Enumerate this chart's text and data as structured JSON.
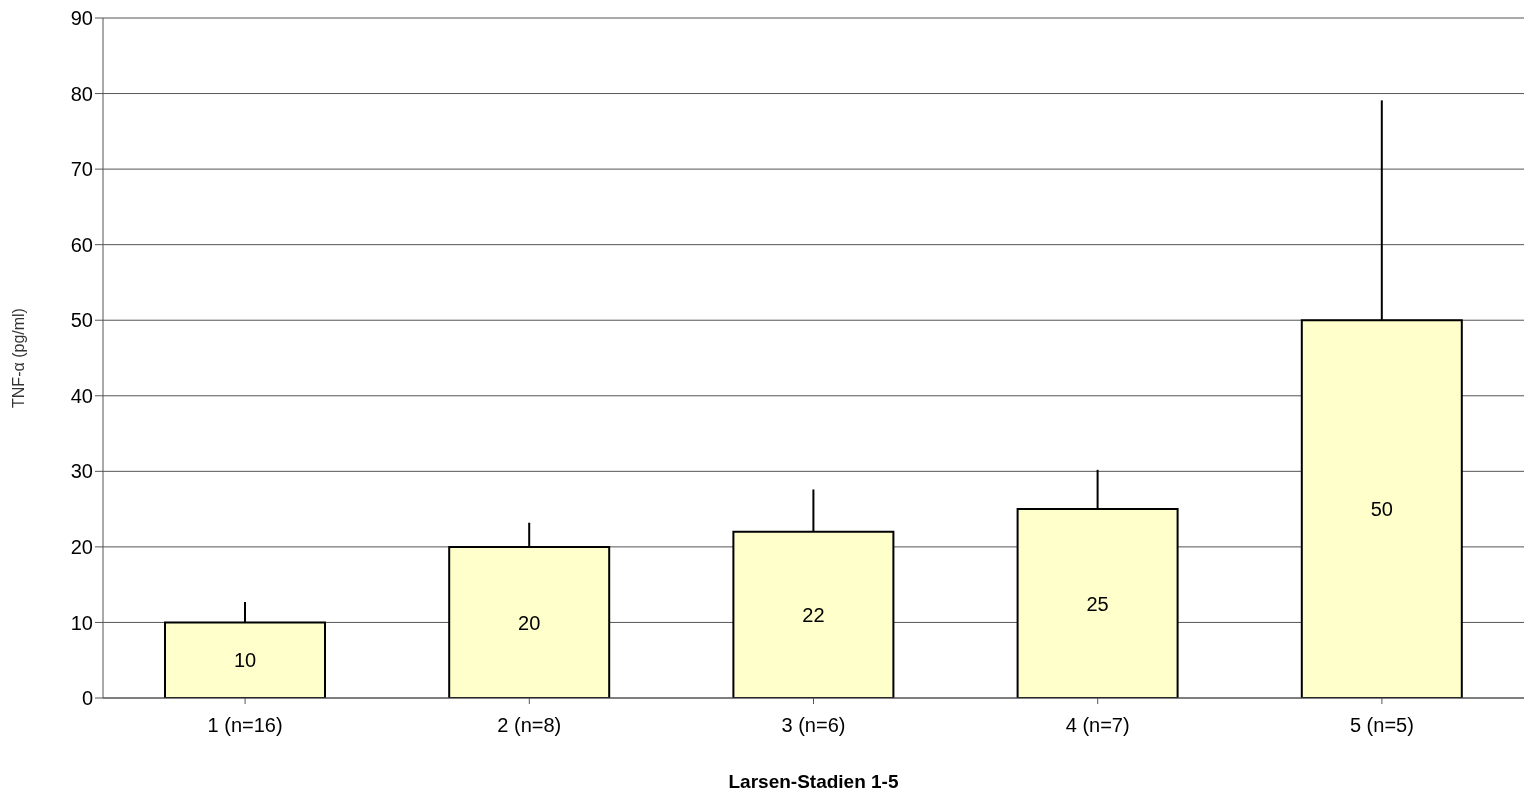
{
  "chart_data": {
    "type": "bar",
    "xlabel": "Larsen-Stadien 1-5",
    "ylabel": "TNF-α (pg/ml)",
    "categories": [
      "1 (n=16)",
      "2 (n=8)",
      "3 (n=6)",
      "4 (n=7)",
      "5 (n=5)"
    ],
    "values": [
      10,
      20,
      22,
      25,
      50
    ],
    "errors": [
      [
        10,
        12.7
      ],
      [
        20,
        23.2
      ],
      [
        22,
        27.6
      ],
      [
        25,
        30.2
      ],
      [
        50,
        79.1
      ]
    ],
    "color": "#ffffcc",
    "data_labels": true,
    "grid": "y",
    "legend": false,
    "ylim": [
      0,
      90
    ],
    "yticks": [
      0,
      10,
      20,
      30,
      40,
      50,
      60,
      70,
      80,
      90
    ]
  }
}
